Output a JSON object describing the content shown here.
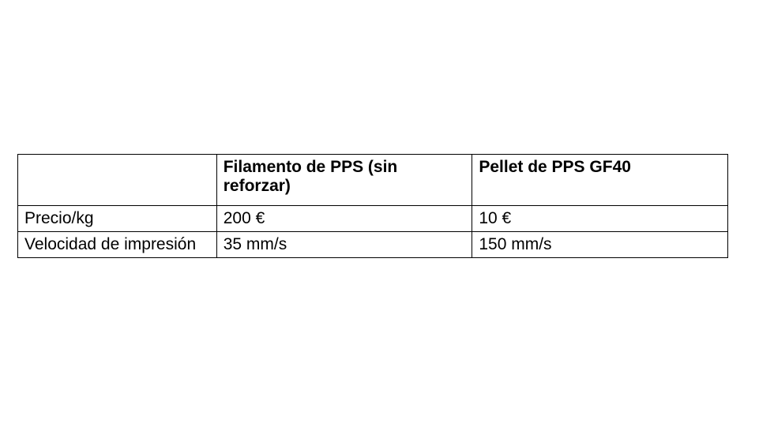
{
  "table": {
    "columns": [
      {
        "header": "",
        "width_pct": 28,
        "align": "left"
      },
      {
        "header": "Filamento de PPS (sin reforzar)",
        "width_pct": 36,
        "align": "left"
      },
      {
        "header": "Pellet de PPS GF40",
        "width_pct": 36,
        "align": "left"
      }
    ],
    "rows": [
      [
        "Precio/kg",
        "200 €",
        "10 €"
      ],
      [
        "Velocidad de impresión",
        "35 mm/s",
        "150 mm/s"
      ]
    ],
    "border_color": "#000000",
    "background_color": "#ffffff",
    "text_color": "#000000",
    "font_size_pt": 16,
    "header_font_weight": "bold",
    "cell_font_weight": "normal"
  }
}
